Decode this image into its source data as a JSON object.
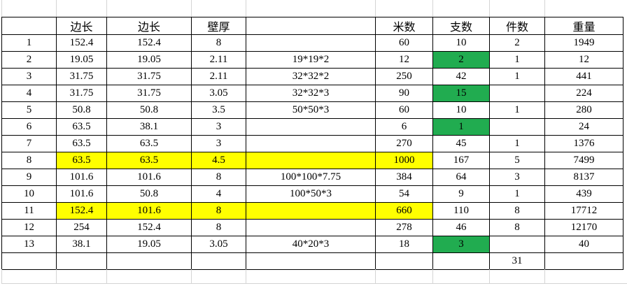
{
  "colors": {
    "highlight_yellow": "#ffff00",
    "highlight_green": "#21ac50",
    "gridline_gray": "#d4d4d4",
    "table_border": "#000000",
    "background": "#ffffff",
    "text": "#000000"
  },
  "table": {
    "headers": [
      "",
      "边长",
      "边长",
      "壁厚",
      "",
      "米数",
      "支数",
      "件数",
      "重量"
    ],
    "rows": [
      [
        "1",
        "152.4",
        "152.4",
        "8",
        "",
        "60",
        "10",
        "2",
        "1949"
      ],
      [
        "2",
        "19.05",
        "19.05",
        "2.11",
        "19*19*2",
        "12",
        "2",
        "1",
        "12"
      ],
      [
        "3",
        "31.75",
        "31.75",
        "2.11",
        "32*32*2",
        "250",
        "42",
        "1",
        "441"
      ],
      [
        "4",
        "31.75",
        "31.75",
        "3.05",
        "32*32*3",
        "90",
        "15",
        "",
        "224"
      ],
      [
        "5",
        "50.8",
        "50.8",
        "3.5",
        "50*50*3",
        "60",
        "10",
        "1",
        "280"
      ],
      [
        "6",
        "63.5",
        "38.1",
        "3",
        "",
        "6",
        "1",
        "",
        "24"
      ],
      [
        "7",
        "63.5",
        "63.5",
        "3",
        "",
        "270",
        "45",
        "1",
        "1376"
      ],
      [
        "8",
        "63.5",
        "63.5",
        "4.5",
        "",
        "1000",
        "167",
        "5",
        "7499"
      ],
      [
        "9",
        "101.6",
        "101.6",
        "8",
        "100*100*7.75",
        "384",
        "64",
        "3",
        "8137"
      ],
      [
        "10",
        "101.6",
        "50.8",
        "4",
        "100*50*3",
        "54",
        "9",
        "1",
        "439"
      ],
      [
        "11",
        "152.4",
        "101.6",
        "8",
        "",
        "660",
        "110",
        "8",
        "17712"
      ],
      [
        "12",
        "254",
        "152.4",
        "8",
        "",
        "278",
        "46",
        "8",
        "12170"
      ],
      [
        "13",
        "38.1",
        "19.05",
        "3.05",
        "40*20*3",
        "18",
        "3",
        "",
        "40"
      ],
      [
        "",
        "",
        "",
        "",
        "",
        "",
        "",
        "31",
        ""
      ]
    ]
  }
}
